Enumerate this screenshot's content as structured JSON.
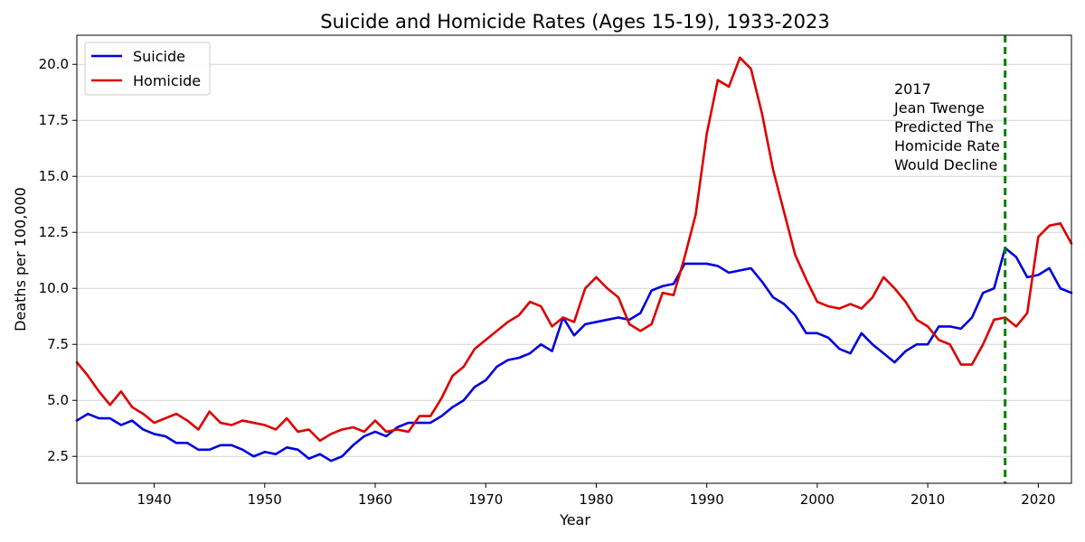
{
  "chart_data": {
    "type": "line",
    "title": "Suicide and Homicide Rates (Ages 15-19), 1933-2023",
    "xlabel": "Year",
    "ylabel": "Deaths per 100,000",
    "xlim": [
      1933,
      2023
    ],
    "ylim": [
      1.3,
      21.3
    ],
    "x_ticks": [
      1940,
      1950,
      1960,
      1970,
      1980,
      1990,
      2000,
      2010,
      2020
    ],
    "y_ticks": [
      2.5,
      5.0,
      7.5,
      10.0,
      12.5,
      15.0,
      17.5,
      20.0
    ],
    "y_tick_labels": [
      "2.5",
      "5.0",
      "7.5",
      "10.0",
      "12.5",
      "15.0",
      "17.5",
      "20.0"
    ],
    "grid": "horizontal",
    "legend_position": "top-left",
    "colors": {
      "suicide": "#0000dd",
      "homicide": "#dd0000",
      "marker": "#008000",
      "grid": "#d3d3d3"
    },
    "x": [
      1933,
      1934,
      1935,
      1936,
      1937,
      1938,
      1939,
      1940,
      1941,
      1942,
      1943,
      1944,
      1945,
      1946,
      1947,
      1948,
      1949,
      1950,
      1951,
      1952,
      1953,
      1954,
      1955,
      1956,
      1957,
      1958,
      1959,
      1960,
      1961,
      1962,
      1963,
      1964,
      1965,
      1966,
      1967,
      1968,
      1969,
      1970,
      1971,
      1972,
      1973,
      1974,
      1975,
      1976,
      1977,
      1978,
      1979,
      1980,
      1981,
      1982,
      1983,
      1984,
      1985,
      1986,
      1987,
      1988,
      1989,
      1990,
      1991,
      1992,
      1993,
      1994,
      1995,
      1996,
      1997,
      1998,
      1999,
      2000,
      2001,
      2002,
      2003,
      2004,
      2005,
      2006,
      2007,
      2008,
      2009,
      2010,
      2011,
      2012,
      2013,
      2014,
      2015,
      2016,
      2017,
      2018,
      2019,
      2020,
      2021,
      2022,
      2023
    ],
    "series": [
      {
        "name": "Suicide",
        "color": "#0000dd",
        "values": [
          4.1,
          4.4,
          4.2,
          4.2,
          3.9,
          4.1,
          3.7,
          3.5,
          3.4,
          3.1,
          3.1,
          2.8,
          2.8,
          3.0,
          3.0,
          2.8,
          2.5,
          2.7,
          2.6,
          2.9,
          2.8,
          2.4,
          2.6,
          2.3,
          2.5,
          3.0,
          3.4,
          3.6,
          3.4,
          3.8,
          4.0,
          4.0,
          4.0,
          4.3,
          4.7,
          5.0,
          5.6,
          5.9,
          6.5,
          6.8,
          6.9,
          7.1,
          7.5,
          7.2,
          8.7,
          7.9,
          8.4,
          8.5,
          8.6,
          8.7,
          8.6,
          8.9,
          9.9,
          10.1,
          10.2,
          11.1,
          11.1,
          11.1,
          11.0,
          10.7,
          10.8,
          10.9,
          10.3,
          9.6,
          9.3,
          8.8,
          8.0,
          8.0,
          7.8,
          7.3,
          7.1,
          8.0,
          7.5,
          7.1,
          6.7,
          7.2,
          7.5,
          7.5,
          8.3,
          8.3,
          8.2,
          8.7,
          9.8,
          10.0,
          11.8,
          11.4,
          10.5,
          10.6,
          10.9,
          10.0,
          9.8
        ]
      },
      {
        "name": "Homicide",
        "color": "#dd0000",
        "values": [
          6.7,
          6.1,
          5.4,
          4.8,
          5.4,
          4.7,
          4.4,
          4.0,
          4.2,
          4.4,
          4.1,
          3.7,
          4.5,
          4.0,
          3.9,
          4.1,
          4.0,
          3.9,
          3.7,
          4.2,
          3.6,
          3.7,
          3.2,
          3.5,
          3.7,
          3.8,
          3.6,
          4.1,
          3.6,
          3.7,
          3.6,
          4.3,
          4.3,
          5.1,
          6.1,
          6.5,
          7.3,
          7.7,
          8.1,
          8.5,
          8.8,
          9.4,
          9.2,
          8.3,
          8.7,
          8.5,
          10.0,
          10.5,
          10.0,
          9.6,
          8.4,
          8.1,
          8.4,
          9.8,
          9.7,
          11.4,
          13.3,
          16.9,
          19.3,
          19.0,
          20.3,
          19.8,
          17.8,
          15.3,
          13.4,
          11.5,
          10.4,
          9.4,
          9.2,
          9.1,
          9.3,
          9.1,
          9.6,
          10.5,
          10.0,
          9.4,
          8.6,
          8.3,
          7.7,
          7.5,
          6.6,
          6.6,
          7.5,
          8.6,
          8.7,
          8.3,
          8.9,
          12.3,
          12.8,
          12.9,
          12.0
        ]
      }
    ],
    "vertical_line": {
      "x": 2017,
      "style": "dashed",
      "color": "#008000"
    },
    "annotation": {
      "lines": [
        "2017",
        "Jean Twenge",
        "Predicted The",
        "Homicide Rate",
        "Would Decline"
      ]
    }
  }
}
